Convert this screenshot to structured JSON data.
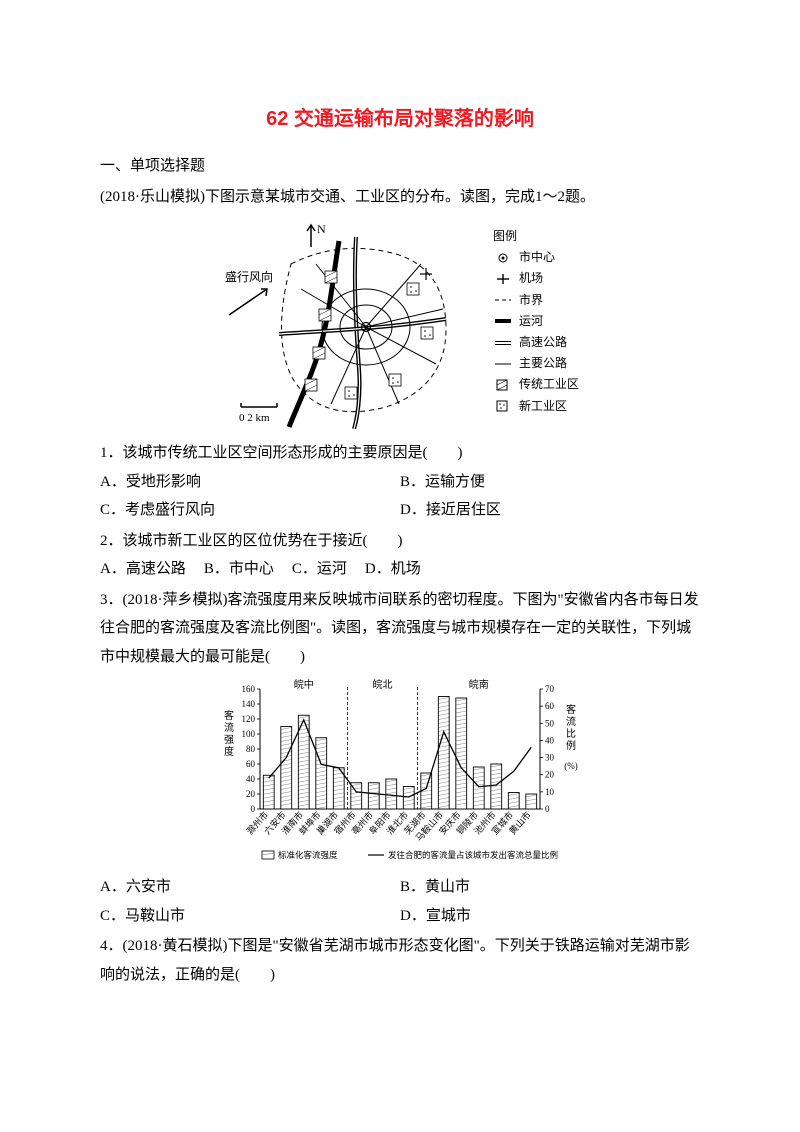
{
  "title": "62 交通运输布局对聚落的影响",
  "section": "一、单项选择题",
  "intro": "(2018·乐山模拟)下图示意某城市交通、工业区的分布。读图，完成1～2题。",
  "map": {
    "north_label": "N",
    "wind_label": "盛行风向",
    "scale_label": "0   2 km",
    "legend_title": "图例",
    "legend": [
      {
        "label": "市中心"
      },
      {
        "label": "机场"
      },
      {
        "label": "市界"
      },
      {
        "label": "运河"
      },
      {
        "label": "高速公路"
      },
      {
        "label": "主要公路"
      },
      {
        "label": "传统工业区"
      },
      {
        "label": "新工业区"
      }
    ],
    "stroke": "#000000",
    "bg": "#ffffff"
  },
  "q1": {
    "stem": "1．该城市传统工业区空间形态形成的主要原因是(　　)",
    "opts": [
      "A．受地形影响",
      "B．运输方便",
      "C．考虑盛行风向",
      "D．接近居住区"
    ]
  },
  "q2": {
    "stem": "2．该城市新工业区的区位优势在于接近(　　)",
    "opts": [
      "A．高速公路",
      "B．市中心",
      "C．运河",
      "D．机场"
    ]
  },
  "q3": {
    "intro": "3．(2018·萍乡模拟)客流强度用来反映城市间联系的密切程度。下图为\"安徽省内各市每日发往合肥的客流强度及客流比例图\"。读图，客流强度与城市规模存在一定的关联性，下列城市中规模最大的最可能是(　　)",
    "opts": [
      "A．六安市",
      "B．黄山市",
      "C．马鞍山市",
      "D．宣城市"
    ]
  },
  "chart": {
    "type": "bar+line",
    "categories": [
      "滁州市",
      "六安市",
      "淮南市",
      "蚌埠市",
      "巢湖市",
      "宿州市",
      "亳州市",
      "阜阳市",
      "淮北市",
      "芜湖市",
      "马鞍山市",
      "安庆市",
      "铜陵市",
      "池州市",
      "宣城市",
      "黄山市"
    ],
    "bar_values": [
      45,
      110,
      125,
      95,
      55,
      35,
      35,
      40,
      30,
      48,
      150,
      148,
      56,
      60,
      22,
      20
    ],
    "line_values": [
      18,
      30,
      52,
      26,
      24,
      10,
      9,
      8,
      7,
      12,
      45,
      24,
      13,
      14,
      22,
      36
    ],
    "y_left": {
      "label": "客流强度",
      "min": 0,
      "max": 160,
      "step": 20
    },
    "y_right": {
      "label": "客流比例",
      "min": 0,
      "max": 70,
      "step": 10,
      "unit": "(%)"
    },
    "regions": [
      "皖中",
      "皖北",
      "皖南"
    ],
    "legend": {
      "bar": "标准化客流强度",
      "line": "发往合肥的客流量占该城市发出客流总量比例"
    },
    "colors": {
      "bar_fill": "#ffffff",
      "bar_stroke": "#000000",
      "line": "#000000",
      "axis": "#000000",
      "bg": "#ffffff",
      "region_line": "#000000"
    }
  },
  "q4": {
    "stem": "4．(2018·黄石模拟)下图是\"安徽省芜湖市城市形态变化图\"。下列关于铁路运输对芜湖市影响的说法，正确的是(　　)"
  }
}
